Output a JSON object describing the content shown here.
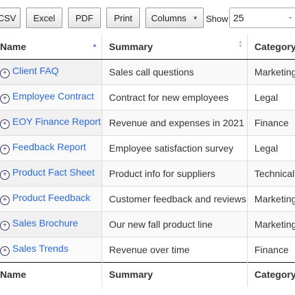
{
  "toolbar": {
    "buttons": {
      "csv": "CSV",
      "excel": "Excel",
      "pdf": "PDF",
      "print": "Print",
      "columns": "Columns"
    },
    "show_label": "Show",
    "page_length": "25"
  },
  "table": {
    "columns": [
      "Name",
      "Summary",
      "Category"
    ],
    "rows": [
      {
        "name": "Client FAQ",
        "summary": "Sales call questions",
        "category": "Marketing"
      },
      {
        "name": "Employee Contract",
        "summary": "Contract for new employees",
        "category": "Legal"
      },
      {
        "name": "EOY Finance Report",
        "summary": "Revenue and expenses in 2021",
        "category": "Finance"
      },
      {
        "name": "Feedback Report",
        "summary": "Employee satisfaction survey",
        "category": "Legal"
      },
      {
        "name": "Product Fact Sheet",
        "summary": "Product info for suppliers",
        "category": "Technical"
      },
      {
        "name": "Product Feedback",
        "summary": "Customer feedback and reviews",
        "category": "Marketing"
      },
      {
        "name": "Sales Brochure",
        "summary": "Our new fall product line",
        "category": "Marketing"
      },
      {
        "name": "Sales Trends",
        "summary": "Revenue over time",
        "category": "Finance"
      }
    ]
  }
}
